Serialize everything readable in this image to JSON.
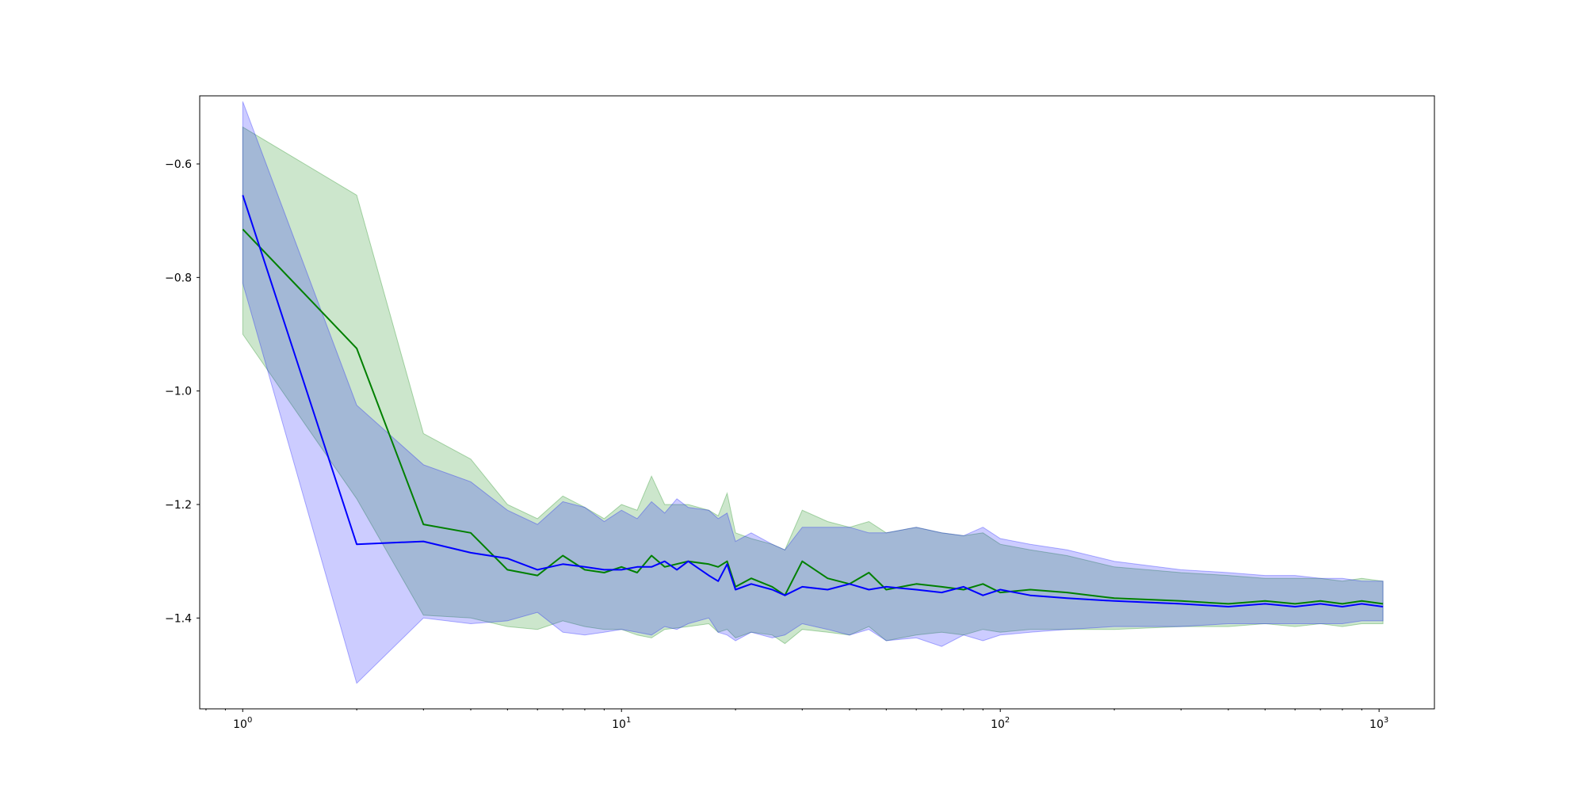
{
  "chart_data": {
    "type": "line",
    "title": "",
    "xlabel": "",
    "ylabel": "",
    "xscale": "log",
    "xlim": [
      0.77,
      1400
    ],
    "ylim": [
      -1.56,
      -0.48
    ],
    "grid": false,
    "legend": "none",
    "x_ticks": [
      {
        "base": "10",
        "exp": "0",
        "value": 1
      },
      {
        "base": "10",
        "exp": "1",
        "value": 10
      },
      {
        "base": "10",
        "exp": "2",
        "value": 100
      },
      {
        "base": "10",
        "exp": "3",
        "value": 1000
      }
    ],
    "y_ticks": [
      {
        "label": "−0.6",
        "value": -0.6
      },
      {
        "label": "−0.8",
        "value": -0.8
      },
      {
        "label": "−1.0",
        "value": -1.0
      },
      {
        "label": "−1.2",
        "value": -1.2
      },
      {
        "label": "−1.4",
        "value": -1.4
      }
    ],
    "series": [
      {
        "color": "#008000",
        "band_color": "#008000",
        "band_opacity": 0.2,
        "x": [
          1,
          2,
          3,
          4,
          5,
          6,
          7,
          8,
          9,
          10,
          11,
          12,
          13,
          15,
          17,
          18,
          19,
          20,
          22,
          25,
          27,
          30,
          35,
          40,
          45,
          50,
          60,
          70,
          80,
          90,
          100,
          120,
          150,
          200,
          300,
          400,
          500,
          600,
          700,
          800,
          900,
          1024
        ],
        "mean": [
          -0.715,
          -0.925,
          -1.235,
          -1.25,
          -1.315,
          -1.325,
          -1.29,
          -1.315,
          -1.32,
          -1.31,
          -1.32,
          -1.29,
          -1.31,
          -1.3,
          -1.305,
          -1.31,
          -1.3,
          -1.345,
          -1.33,
          -1.345,
          -1.36,
          -1.3,
          -1.33,
          -1.34,
          -1.32,
          -1.35,
          -1.34,
          -1.345,
          -1.35,
          -1.34,
          -1.355,
          -1.35,
          -1.355,
          -1.365,
          -1.37,
          -1.375,
          -1.37,
          -1.375,
          -1.37,
          -1.375,
          -1.37,
          -1.375
        ],
        "upper": [
          -0.535,
          -0.655,
          -1.075,
          -1.12,
          -1.2,
          -1.225,
          -1.185,
          -1.205,
          -1.225,
          -1.2,
          -1.21,
          -1.15,
          -1.2,
          -1.2,
          -1.21,
          -1.22,
          -1.18,
          -1.25,
          -1.26,
          -1.27,
          -1.28,
          -1.21,
          -1.23,
          -1.24,
          -1.23,
          -1.25,
          -1.24,
          -1.25,
          -1.255,
          -1.25,
          -1.27,
          -1.28,
          -1.29,
          -1.31,
          -1.32,
          -1.325,
          -1.33,
          -1.33,
          -1.33,
          -1.335,
          -1.33,
          -1.335
        ],
        "lower": [
          -0.9,
          -1.19,
          -1.395,
          -1.4,
          -1.415,
          -1.42,
          -1.405,
          -1.415,
          -1.42,
          -1.42,
          -1.43,
          -1.435,
          -1.42,
          -1.415,
          -1.41,
          -1.425,
          -1.42,
          -1.435,
          -1.425,
          -1.43,
          -1.445,
          -1.42,
          -1.425,
          -1.43,
          -1.415,
          -1.44,
          -1.43,
          -1.425,
          -1.43,
          -1.42,
          -1.425,
          -1.42,
          -1.42,
          -1.42,
          -1.415,
          -1.415,
          -1.41,
          -1.415,
          -1.41,
          -1.415,
          -1.41,
          -1.41
        ]
      },
      {
        "color": "#0000ff",
        "band_color": "#0000ff",
        "band_opacity": 0.2,
        "x": [
          1,
          2,
          3,
          4,
          5,
          6,
          7,
          8,
          9,
          10,
          11,
          12,
          13,
          14,
          15,
          17,
          18,
          19,
          20,
          22,
          25,
          27,
          30,
          35,
          40,
          45,
          50,
          60,
          70,
          80,
          90,
          100,
          120,
          150,
          200,
          300,
          400,
          500,
          600,
          700,
          800,
          900,
          1024
        ],
        "mean": [
          -0.655,
          -1.27,
          -1.265,
          -1.285,
          -1.295,
          -1.315,
          -1.305,
          -1.31,
          -1.315,
          -1.315,
          -1.31,
          -1.31,
          -1.3,
          -1.315,
          -1.3,
          -1.325,
          -1.335,
          -1.305,
          -1.35,
          -1.34,
          -1.35,
          -1.36,
          -1.345,
          -1.35,
          -1.34,
          -1.35,
          -1.345,
          -1.35,
          -1.355,
          -1.345,
          -1.36,
          -1.35,
          -1.36,
          -1.365,
          -1.37,
          -1.375,
          -1.38,
          -1.375,
          -1.38,
          -1.375,
          -1.38,
          -1.375,
          -1.38
        ],
        "upper": [
          -0.49,
          -1.025,
          -1.13,
          -1.16,
          -1.21,
          -1.235,
          -1.195,
          -1.205,
          -1.23,
          -1.21,
          -1.225,
          -1.195,
          -1.215,
          -1.19,
          -1.205,
          -1.21,
          -1.225,
          -1.215,
          -1.265,
          -1.25,
          -1.27,
          -1.28,
          -1.24,
          -1.24,
          -1.24,
          -1.25,
          -1.25,
          -1.24,
          -1.25,
          -1.255,
          -1.24,
          -1.26,
          -1.27,
          -1.28,
          -1.3,
          -1.315,
          -1.32,
          -1.325,
          -1.325,
          -1.33,
          -1.33,
          -1.335,
          -1.335
        ],
        "lower": [
          -0.81,
          -1.515,
          -1.4,
          -1.41,
          -1.405,
          -1.39,
          -1.425,
          -1.43,
          -1.425,
          -1.42,
          -1.425,
          -1.43,
          -1.415,
          -1.42,
          -1.41,
          -1.4,
          -1.425,
          -1.43,
          -1.44,
          -1.425,
          -1.435,
          -1.43,
          -1.41,
          -1.42,
          -1.43,
          -1.42,
          -1.44,
          -1.435,
          -1.45,
          -1.43,
          -1.44,
          -1.43,
          -1.425,
          -1.42,
          -1.415,
          -1.415,
          -1.41,
          -1.41,
          -1.41,
          -1.41,
          -1.41,
          -1.405,
          -1.405
        ]
      }
    ]
  }
}
